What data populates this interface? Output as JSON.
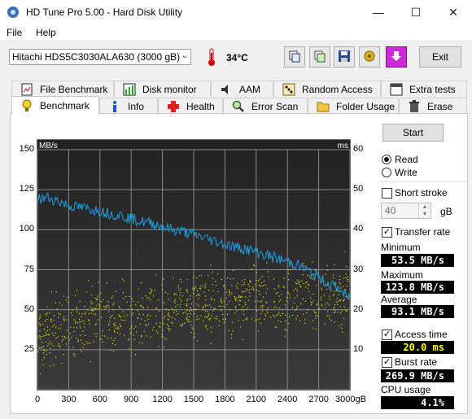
{
  "window": {
    "title": "HD Tune Pro 5.00 - Hard Disk Utility"
  },
  "menu": {
    "file": "File",
    "help": "Help"
  },
  "toolbar": {
    "drive": "Hitachi HDS5C3030ALA630 (3000 gB)",
    "temperature": "34°C",
    "exit_label": "Exit",
    "icons": [
      "copy-icon",
      "copy-screen-icon",
      "save-icon",
      "options-icon",
      "download-icon"
    ]
  },
  "tabs_top": [
    "File Benchmark",
    "Disk monitor",
    "AAM",
    "Random Access",
    "Extra tests"
  ],
  "tabs_bottom": [
    "Benchmark",
    "Info",
    "Health",
    "Error Scan",
    "Folder Usage",
    "Erase"
  ],
  "sidebar": {
    "start": "Start",
    "read": "Read",
    "write": "Write",
    "short_stroke": "Short stroke",
    "short_stroke_value": "40",
    "short_stroke_unit": "gB",
    "transfer_rate": "Transfer rate",
    "minimum_label": "Minimum",
    "minimum": "53.5 MB/s",
    "maximum_label": "Maximum",
    "maximum": "123.8 MB/s",
    "average_label": "Average",
    "average": "93.1 MB/s",
    "access_time": "Access time",
    "access_value": "20.0 ms",
    "burst_rate": "Burst rate",
    "burst_value": "269.9 MB/s",
    "cpu_label": "CPU usage",
    "cpu_value": "4.1%"
  },
  "chart_data": {
    "type": "line",
    "y_left_label": "MB/s",
    "y_right_label": "ms",
    "x_unit": "gB",
    "ylim_left": [
      0,
      150
    ],
    "ylim_right": [
      0,
      60
    ],
    "xlim": [
      0,
      3000
    ],
    "y_left_ticks": [
      150,
      125,
      100,
      75,
      50,
      25
    ],
    "y_right_ticks": [
      60,
      50,
      40,
      30,
      20,
      10
    ],
    "x_ticks": [
      "0",
      "300",
      "600",
      "900",
      "1200",
      "1500",
      "1800",
      "2100",
      "2400",
      "2700",
      "3000gB"
    ],
    "grid": true,
    "series": [
      {
        "name": "Transfer rate",
        "color": "#1e9fe0",
        "x": [
          0,
          100,
          200,
          300,
          400,
          500,
          600,
          700,
          800,
          900,
          1000,
          1100,
          1200,
          1300,
          1400,
          1500,
          1600,
          1700,
          1800,
          1900,
          2000,
          2100,
          2200,
          2300,
          2400,
          2500,
          2600,
          2700,
          2800,
          2900,
          3000
        ],
        "y": [
          119,
          120,
          118,
          115,
          114,
          113,
          112,
          110,
          109,
          107,
          105,
          104,
          102,
          100,
          99,
          97,
          95,
          93,
          91,
          89,
          88,
          86,
          84,
          82,
          80,
          78,
          74,
          70,
          66,
          63,
          56
        ]
      },
      {
        "name": "Access time",
        "color": "#e8e800",
        "type": "scatter",
        "x_range": [
          0,
          3000
        ],
        "y_center_ms": [
          14,
          16,
          18,
          19,
          20,
          21,
          22,
          23,
          23,
          24,
          24
        ],
        "y_spread_ms": 8
      }
    ]
  }
}
